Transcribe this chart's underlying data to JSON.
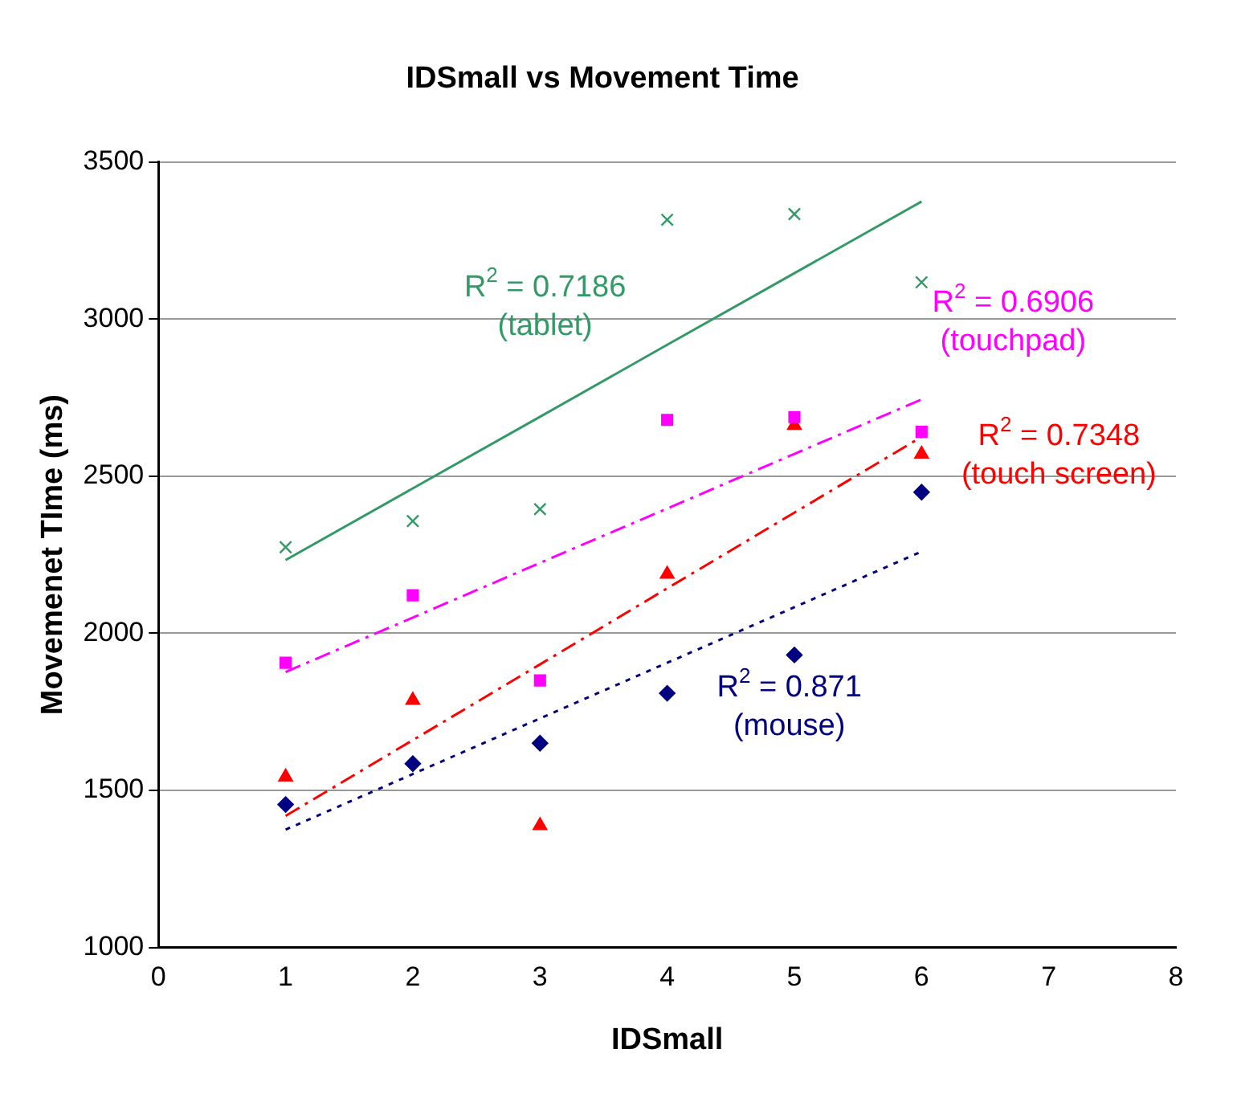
{
  "chart_data": {
    "type": "scatter",
    "title": "IDSmall vs Movement Time",
    "xlabel": "IDSmall",
    "ylabel": "Movemenet TIme (ms)",
    "xlim": [
      0,
      8
    ],
    "xticks": [
      0,
      1,
      2,
      3,
      4,
      5,
      6,
      7,
      8
    ],
    "ylim": [
      1000,
      3500
    ],
    "yticks": [
      1000,
      1500,
      2000,
      2500,
      3000,
      3500
    ],
    "grid": "y",
    "x": [
      1,
      2,
      3,
      4,
      5,
      6
    ],
    "series": [
      {
        "color": "#339966",
        "marker": "cross",
        "values": [
          2274,
          2357,
          2395,
          3316,
          3334,
          3117
        ]
      },
      {
        "color": "#ff00ff",
        "marker": "square",
        "values": [
          1906,
          2121,
          1850,
          2679,
          2688,
          2641
        ]
      },
      {
        "color": "#ff0000",
        "marker": "triangle",
        "values": [
          1543,
          1787,
          1388,
          2188,
          2662,
          2570
        ]
      },
      {
        "color": "#000080",
        "marker": "diamond",
        "values": [
          1455,
          1585,
          1650,
          1809,
          1931,
          2449
        ]
      },
      {
        "type": "line",
        "color": "#339966",
        "line_style": "solid",
        "marker": "none",
        "values": [
          2233,
          2461,
          2689,
          2918,
          3146,
          3374
        ]
      },
      {
        "type": "line",
        "color": "#ff00ff",
        "line_style": "dashed",
        "marker": "none",
        "values": [
          1877,
          2050,
          2224,
          2397,
          2571,
          2744
        ]
      },
      {
        "type": "line",
        "color": "#ff0000",
        "line_style": "dashed",
        "marker": "none",
        "values": [
          1419,
          1660,
          1901,
          2143,
          2384,
          2625
        ]
      },
      {
        "type": "line",
        "color": "#000080",
        "line_style": "dotted",
        "marker": "none",
        "values": [
          1375,
          1552,
          1729,
          1906,
          2083,
          2260
        ]
      }
    ],
    "annotations": [
      "R$^{2}$ = 0.7186\n(tablet)",
      "R$^{2}$ = 0.6906\n(touchpad)",
      "R$^{2}$ = 0.7348\n(touch screen)",
      "R$^{2}$ = 0.871\n(mouse)"
    ]
  }
}
